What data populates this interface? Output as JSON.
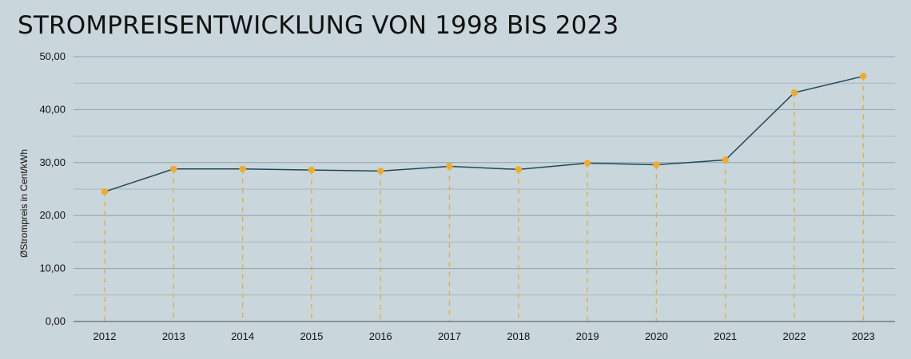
{
  "title": "STROMPREISENTWICKLUNG VON 1998 BIS 2023",
  "colors": {
    "background": "#c9d6db",
    "line": "#1d4a5a",
    "points": "#efac2a",
    "drop_lines": "#e9ad2c",
    "grid": "#8fa3ad"
  },
  "chart_data": {
    "type": "line",
    "title": "STROMPREISENTWICKLUNG VON 1998 BIS 2023",
    "xlabel": "",
    "ylabel": "ØStrompreis in Cent/kWh",
    "categories": [
      "2012",
      "2013",
      "2014",
      "2015",
      "2016",
      "2017",
      "2018",
      "2019",
      "2020",
      "2021",
      "2022",
      "2023"
    ],
    "series": [
      {
        "values": [
          24.5,
          28.8,
          28.8,
          28.6,
          28.4,
          29.3,
          28.7,
          29.9,
          29.6,
          30.5,
          43.2,
          46.3
        ]
      }
    ],
    "ylim": [
      0,
      50
    ],
    "yticks": [
      {
        "value": 0,
        "label": "0,00"
      },
      {
        "value": 10,
        "label": "10,00"
      },
      {
        "value": 20,
        "label": "20,00"
      },
      {
        "value": 30,
        "label": "30,00"
      },
      {
        "value": 40,
        "label": "40,00"
      },
      {
        "value": 50,
        "label": "50,00"
      }
    ],
    "minor_gridlines_at": [
      5,
      15,
      25,
      35,
      45
    ],
    "grid": true,
    "drop_lines": true,
    "legend": "none"
  }
}
